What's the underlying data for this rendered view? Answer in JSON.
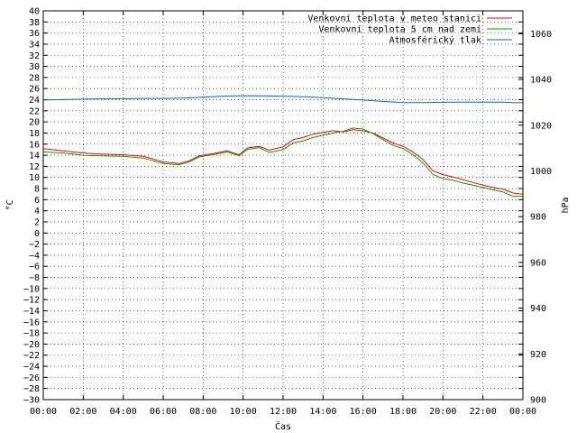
{
  "chart_data": {
    "type": "line",
    "xlabel": "Čas",
    "ylabel_left": "°C",
    "ylabel_right": "hPa",
    "ylim_left": [
      -30,
      40
    ],
    "ylim_right": [
      900,
      1070
    ],
    "left_ticks": [
      -30,
      -28,
      -26,
      -24,
      -22,
      -20,
      -18,
      -16,
      -14,
      -12,
      -10,
      -8,
      -6,
      -4,
      -2,
      0,
      2,
      4,
      6,
      8,
      10,
      12,
      14,
      16,
      18,
      20,
      22,
      24,
      26,
      28,
      30,
      32,
      34,
      36,
      38,
      40
    ],
    "right_ticks": [
      900,
      920,
      940,
      960,
      980,
      1000,
      1020,
      1040,
      1060
    ],
    "x_ticks": [
      "00:00",
      "02:00",
      "04:00",
      "06:00",
      "08:00",
      "10:00",
      "12:00",
      "14:00",
      "16:00",
      "18:00",
      "20:00",
      "22:00",
      "00:00"
    ],
    "grid": true,
    "legend_position": "top-right",
    "series": [
      {
        "name": "Venkovní teplota v meteo stanici",
        "color": "#ff0000",
        "axis": "left",
        "x": [
          0,
          1,
          2,
          3,
          4,
          5,
          6,
          6.8,
          7.3,
          7.8,
          8.5,
          9.2,
          9.8,
          10.2,
          10.8,
          11.3,
          12,
          12.5,
          13,
          13.5,
          14,
          14.5,
          15,
          15.5,
          16,
          16.5,
          17,
          17.5,
          18,
          18.5,
          19,
          19.3,
          19.5,
          20,
          20.5,
          21,
          21.5,
          22,
          22.5,
          23,
          23.5,
          24
        ],
        "values": [
          15.2,
          14.8,
          14.4,
          14.2,
          14.1,
          13.8,
          12.8,
          12.5,
          13.0,
          13.9,
          14.3,
          14.8,
          14.1,
          15.3,
          15.6,
          14.9,
          15.5,
          16.8,
          17.2,
          17.8,
          18.1,
          18.4,
          18.2,
          18.6,
          18.4,
          18.0,
          17.1,
          16.2,
          15.6,
          14.6,
          13.2,
          12.0,
          11.2,
          10.5,
          10.1,
          9.6,
          9.1,
          8.6,
          8.2,
          7.9,
          7.2,
          7.0
        ]
      },
      {
        "name": "Venkovní teplota 5 cm nad zemí",
        "color": "#00a000",
        "axis": "left",
        "x": [
          0,
          1,
          2,
          3,
          4,
          5,
          6,
          6.8,
          7.3,
          7.8,
          8.5,
          9.2,
          9.8,
          10.2,
          10.8,
          11.3,
          12,
          12.5,
          13,
          13.5,
          14,
          14.5,
          15,
          15.5,
          16,
          16.5,
          17,
          17.5,
          18,
          18.5,
          19,
          19.3,
          19.5,
          20,
          20.5,
          21,
          21.5,
          22,
          22.5,
          23,
          23.5,
          24
        ],
        "values": [
          14.6,
          14.4,
          14.0,
          13.9,
          13.8,
          13.5,
          12.5,
          12.3,
          12.8,
          13.7,
          14.1,
          14.6,
          13.9,
          15.0,
          15.4,
          14.5,
          15.0,
          16.2,
          16.6,
          17.2,
          17.6,
          18.0,
          18.3,
          18.9,
          18.7,
          17.9,
          16.8,
          15.8,
          15.2,
          14.1,
          12.6,
          11.4,
          10.5,
          9.8,
          9.5,
          9.0,
          8.6,
          8.2,
          7.8,
          7.4,
          6.6,
          6.6
        ]
      },
      {
        "name": "Atmosférický tlak",
        "color": "#0066cc",
        "axis": "right",
        "x": [
          0,
          1,
          2,
          3,
          4,
          5,
          6,
          7,
          8,
          9,
          10,
          11,
          12,
          13,
          14,
          15,
          16,
          17,
          18,
          19,
          20,
          21,
          22,
          23,
          23.5,
          24
        ],
        "values": [
          1031.0,
          1031.2,
          1031.4,
          1031.5,
          1031.6,
          1031.7,
          1031.7,
          1031.8,
          1032.2,
          1032.7,
          1032.9,
          1032.8,
          1032.7,
          1032.4,
          1032.0,
          1031.5,
          1031.0,
          1030.4,
          1029.9,
          1029.9,
          1030.0,
          1030.1,
          1030.1,
          1030.1,
          1029.8,
          1029.9
        ]
      }
    ]
  }
}
